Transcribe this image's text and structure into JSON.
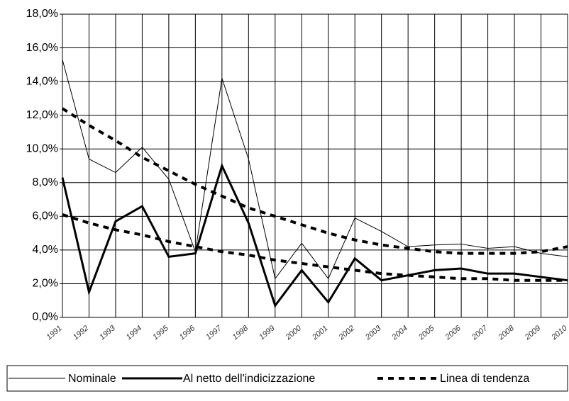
{
  "chart_data": {
    "type": "line",
    "categories": [
      "1991",
      "1992",
      "1993",
      "1994",
      "1995",
      "1996",
      "1997",
      "1998",
      "1999",
      "2000",
      "2001",
      "2002",
      "2003",
      "2004",
      "2005",
      "2006",
      "2007",
      "2008",
      "2009",
      "2010"
    ],
    "series": [
      {
        "name": "Nominale",
        "color": "#000000",
        "width": 1,
        "dash": false,
        "values": [
          15.3,
          9.4,
          8.6,
          10.1,
          8.2,
          3.9,
          14.2,
          9.4,
          2.3,
          4.4,
          2.3,
          5.9,
          5.1,
          4.2,
          4.3,
          4.35,
          4.1,
          4.2,
          3.8,
          3.6
        ]
      },
      {
        "name": "Al netto dell'indicizzazione",
        "color": "#000000",
        "width": 3,
        "dash": false,
        "values": [
          8.3,
          1.5,
          5.7,
          6.6,
          3.6,
          3.8,
          9.0,
          5.6,
          0.7,
          2.8,
          0.9,
          3.5,
          2.2,
          2.5,
          2.8,
          2.9,
          2.6,
          2.6,
          2.4,
          2.2
        ]
      },
      {
        "name": "Linea di tendenza",
        "color": "#000000",
        "width": 4,
        "dash": true,
        "values": [
          12.4,
          11.4,
          10.5,
          9.5,
          8.7,
          7.9,
          7.2,
          6.5,
          6.0,
          5.5,
          5.0,
          4.6,
          4.3,
          4.1,
          3.9,
          3.8,
          3.8,
          3.8,
          3.9,
          4.2
        ]
      },
      {
        "color": "#000000",
        "width": 4,
        "dash": true,
        "values": [
          6.1,
          5.6,
          5.2,
          4.9,
          4.5,
          4.2,
          3.9,
          3.7,
          3.4,
          3.2,
          3.0,
          2.8,
          2.6,
          2.5,
          2.4,
          2.3,
          2.3,
          2.2,
          2.2,
          2.2
        ]
      }
    ],
    "ylim": [
      0,
      18
    ],
    "yticks": [
      {
        "value": 0,
        "label": "0,0%"
      },
      {
        "value": 2,
        "label": "2,0%"
      },
      {
        "value": 4,
        "label": "4,0%"
      },
      {
        "value": 6,
        "label": "6,0%"
      },
      {
        "value": 8,
        "label": "8,0%"
      },
      {
        "value": 10,
        "label": "10,0%"
      },
      {
        "value": 12,
        "label": "12,0%"
      },
      {
        "value": 14,
        "label": "14,0%"
      },
      {
        "value": 16,
        "label": "16,0%"
      },
      {
        "value": 18,
        "label": "18,0%"
      }
    ],
    "grid": true
  }
}
